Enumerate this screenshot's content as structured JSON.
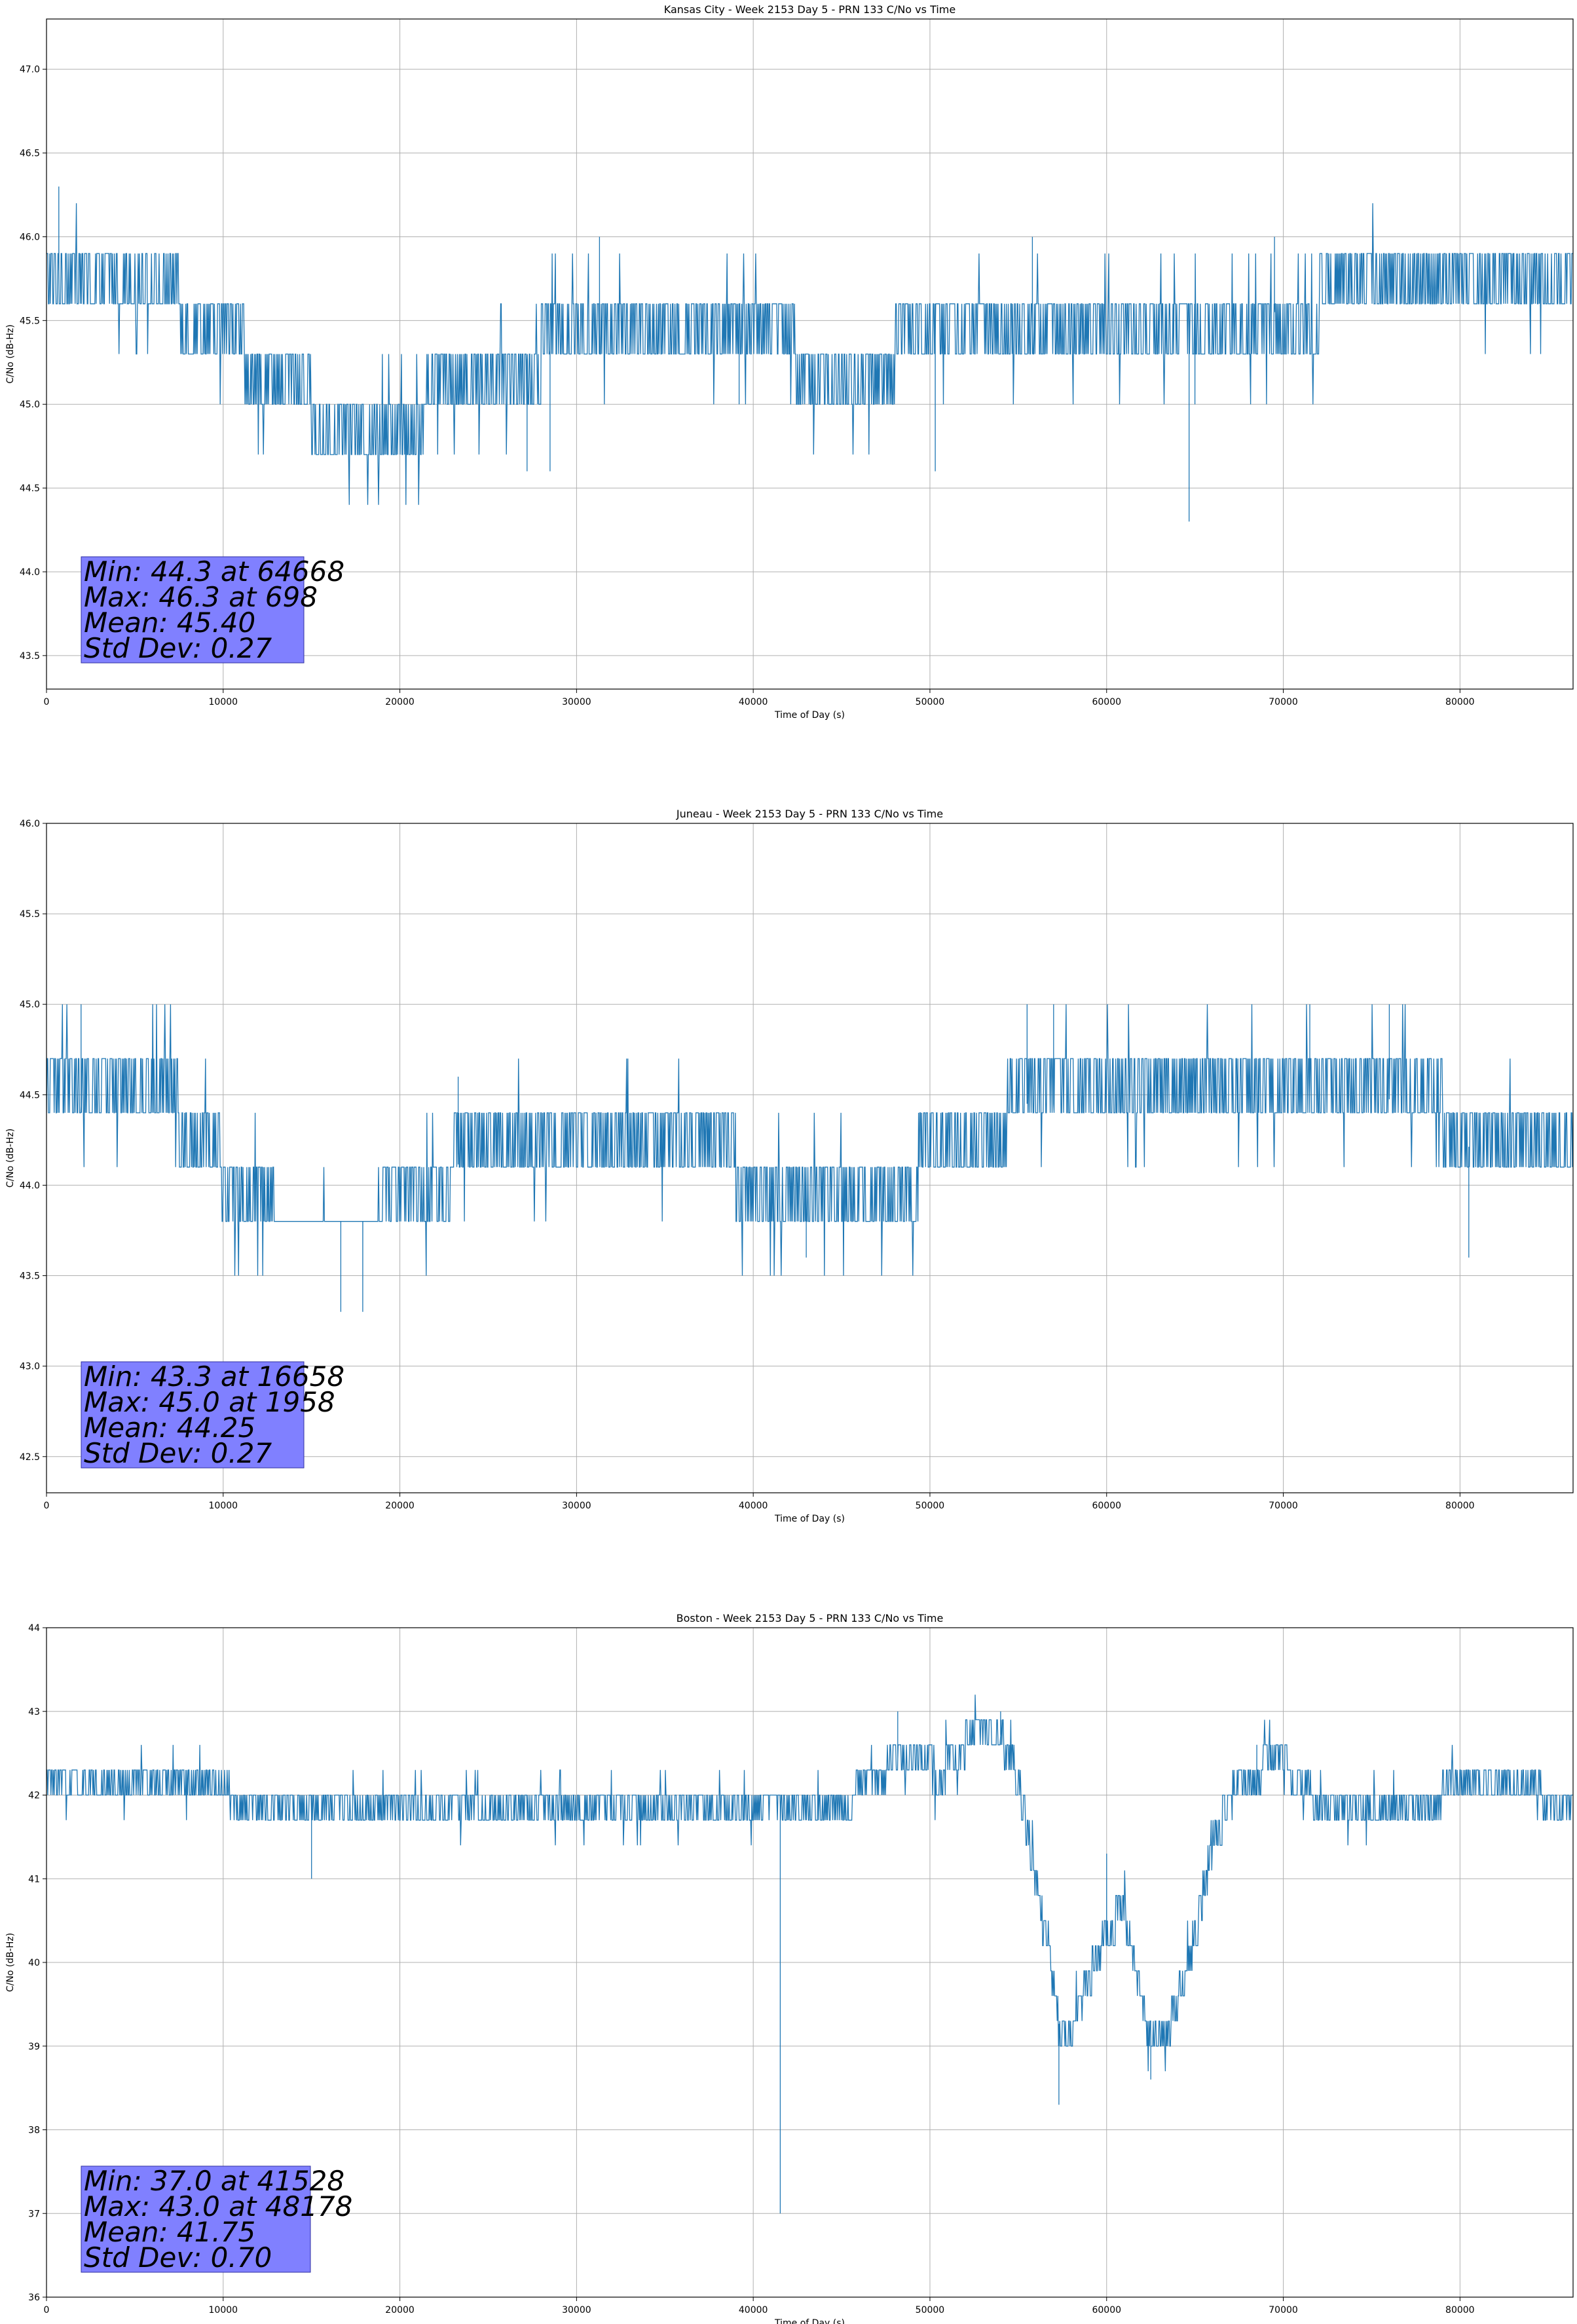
{
  "colors": {
    "line": "#1f77b4",
    "stats_box": "#8080ff",
    "grid": "#b0b0b0",
    "axes": "#000000"
  },
  "chart_data": [
    {
      "type": "line",
      "title": "Kansas City - Week 2153 Day 5 - PRN 133 C/No vs Time",
      "xlabel": "Time of Day (s)",
      "ylabel": "C/No (dB-Hz)",
      "xlim": [
        0,
        86400
      ],
      "ylim": [
        43.3,
        47.3
      ],
      "grid": true,
      "x_ticks": [
        0,
        10000,
        20000,
        30000,
        40000,
        50000,
        60000,
        70000,
        80000
      ],
      "y_ticks": [
        43.5,
        44.0,
        44.5,
        45.0,
        45.5,
        46.0,
        46.5,
        47.0
      ],
      "y_tick_labels": [
        "43.5",
        "44.0",
        "44.5",
        "45.0",
        "45.5",
        "46.0",
        "46.5",
        "47.0"
      ],
      "quant_step": 0.3,
      "trend": [
        [
          0,
          45.8
        ],
        [
          5500,
          45.8
        ],
        [
          7500,
          45.6
        ],
        [
          10000,
          45.4
        ],
        [
          13000,
          45.15
        ],
        [
          15000,
          45.0
        ],
        [
          17000,
          44.8
        ],
        [
          20000,
          44.8
        ],
        [
          21500,
          45.0
        ],
        [
          24000,
          45.15
        ],
        [
          28000,
          45.3
        ],
        [
          32000,
          45.45
        ],
        [
          40000,
          45.45
        ],
        [
          44000,
          45.2
        ],
        [
          48000,
          45.3
        ],
        [
          52000,
          45.45
        ],
        [
          60000,
          45.45
        ],
        [
          64000,
          45.45
        ],
        [
          67000,
          45.5
        ],
        [
          72000,
          45.6
        ],
        [
          80000,
          45.75
        ],
        [
          86400,
          45.8
        ]
      ],
      "spikes": [
        [
          698,
          46.3
        ],
        [
          64668,
          44.3
        ],
        [
          50300,
          44.6
        ],
        [
          28500,
          44.6
        ],
        [
          27200,
          44.6
        ],
        [
          31300,
          46.0
        ],
        [
          39200,
          45.0
        ],
        [
          55800,
          46.0
        ],
        [
          69500,
          46.0
        ],
        [
          65000,
          45.0
        ]
      ],
      "stats": {
        "min": "Min: 44.3 at 64668",
        "max": "Max: 46.3 at 698",
        "mean": "Mean: 45.40",
        "std": "Std Dev: 0.27"
      }
    },
    {
      "type": "line",
      "title": "Juneau - Week 2153 Day 5 - PRN 133 C/No vs Time",
      "xlabel": "Time of Day (s)",
      "ylabel": "C/No (dB-Hz)",
      "xlim": [
        0,
        86400
      ],
      "ylim": [
        42.3,
        46.0
      ],
      "grid": true,
      "x_ticks": [
        0,
        10000,
        20000,
        30000,
        40000,
        50000,
        60000,
        70000,
        80000
      ],
      "y_ticks": [
        42.5,
        43.0,
        43.5,
        44.0,
        44.5,
        45.0,
        45.5,
        46.0
      ],
      "y_tick_labels": [
        "42.5",
        "43.0",
        "43.5",
        "44.0",
        "44.5",
        "45.0",
        "45.5",
        "46.0"
      ],
      "quant_step": 0.3,
      "trend": [
        [
          0,
          44.45
        ],
        [
          7500,
          44.4
        ],
        [
          9500,
          44.15
        ],
        [
          11000,
          43.95
        ],
        [
          13000,
          43.8
        ],
        [
          19000,
          43.8
        ],
        [
          21000,
          44.0
        ],
        [
          24000,
          44.15
        ],
        [
          27000,
          44.3
        ],
        [
          33000,
          44.3
        ],
        [
          38000,
          44.15
        ],
        [
          42000,
          43.95
        ],
        [
          46000,
          43.85
        ],
        [
          48000,
          44.0
        ],
        [
          50000,
          44.15
        ],
        [
          53000,
          44.3
        ],
        [
          55000,
          44.45
        ],
        [
          65000,
          44.45
        ],
        [
          75000,
          44.5
        ],
        [
          79000,
          44.4
        ],
        [
          81000,
          44.15
        ],
        [
          84000,
          44.2
        ],
        [
          86400,
          44.25
        ]
      ],
      "spikes": [
        [
          1958,
          45.0
        ],
        [
          16658,
          43.3
        ],
        [
          17900,
          43.3
        ],
        [
          23300,
          44.6
        ],
        [
          43000,
          43.6
        ],
        [
          55500,
          45.0
        ],
        [
          57000,
          45.0
        ],
        [
          71500,
          45.0
        ],
        [
          76000,
          45.0
        ],
        [
          80500,
          43.6
        ]
      ],
      "stats": {
        "min": "Min: 43.3 at 16658",
        "max": "Max: 45.0 at 1958",
        "mean": "Mean: 44.25",
        "std": "Std Dev: 0.27"
      }
    },
    {
      "type": "line",
      "title": "Boston - Week 2153 Day 5 - PRN 133 C/No vs Time",
      "xlabel": "Time of Day (s)",
      "ylabel": "C/No (dB-Hz)",
      "xlim": [
        0,
        86400
      ],
      "ylim": [
        36,
        44
      ],
      "grid": true,
      "x_ticks": [
        0,
        10000,
        20000,
        30000,
        40000,
        50000,
        60000,
        70000,
        80000
      ],
      "y_ticks": [
        36,
        37,
        38,
        39,
        40,
        41,
        42,
        43,
        44
      ],
      "y_tick_labels": [
        "36",
        "37",
        "38",
        "39",
        "40",
        "41",
        "42",
        "43",
        "44"
      ],
      "quant_step": 0.3,
      "trend": [
        [
          0,
          42.2
        ],
        [
          9000,
          42.1
        ],
        [
          13000,
          41.8
        ],
        [
          16000,
          41.7
        ],
        [
          20000,
          41.85
        ],
        [
          25000,
          41.95
        ],
        [
          40000,
          41.85
        ],
        [
          45000,
          41.9
        ],
        [
          47000,
          42.2
        ],
        [
          49000,
          42.6
        ],
        [
          50500,
          42.2
        ],
        [
          52000,
          42.6
        ],
        [
          54000,
          42.7
        ],
        [
          55000,
          42.2
        ],
        [
          56000,
          41.0
        ],
        [
          57500,
          39.0
        ],
        [
          58500,
          39.5
        ],
        [
          60000,
          40.4
        ],
        [
          61000,
          40.6
        ],
        [
          62500,
          39.0
        ],
        [
          63500,
          39.2
        ],
        [
          65000,
          40.3
        ],
        [
          66000,
          41.4
        ],
        [
          67500,
          42.2
        ],
        [
          70000,
          42.4
        ],
        [
          72000,
          41.9
        ],
        [
          75000,
          41.7
        ],
        [
          78000,
          41.9
        ],
        [
          81000,
          42.2
        ],
        [
          86400,
          41.9
        ]
      ],
      "spikes": [
        [
          41528,
          37.0
        ],
        [
          48178,
          43.0
        ],
        [
          57300,
          38.3
        ],
        [
          62500,
          38.6
        ],
        [
          60000,
          41.3
        ],
        [
          54000,
          43.0
        ],
        [
          68500,
          42.6
        ],
        [
          15000,
          41.0
        ]
      ],
      "stats": {
        "min": "Min: 37.0 at 41528",
        "max": "Max: 43.0 at 48178",
        "mean": "Mean: 41.75",
        "std": "Std Dev: 0.70"
      }
    }
  ]
}
